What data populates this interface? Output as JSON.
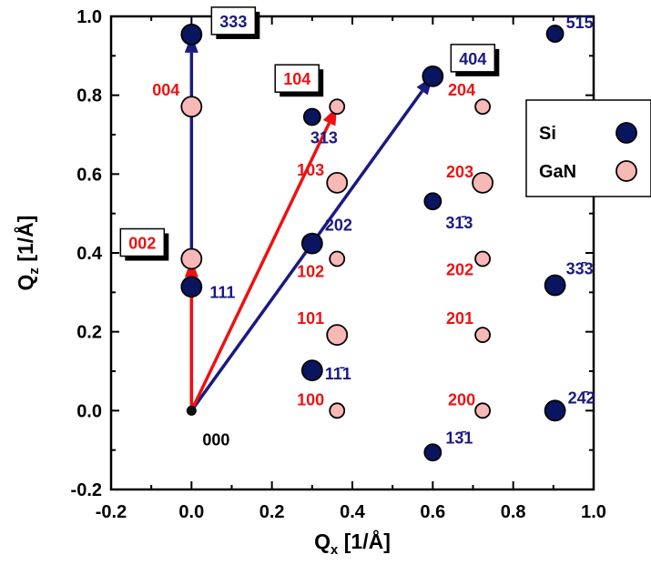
{
  "chart_data": {
    "type": "scatter",
    "title": "",
    "xlabel": {
      "main": "Q",
      "sub": "x",
      "unit": " [1/Å]"
    },
    "ylabel": {
      "main": "Q",
      "sub": "z",
      "unit": " [1/Å]"
    },
    "xlim": [
      -0.2,
      1.0
    ],
    "ylim": [
      -0.2,
      1.0
    ],
    "xticks": [
      "-0.2",
      "0.0",
      "0.2",
      "0.4",
      "0.6",
      "0.8",
      "1.0"
    ],
    "yticks": [
      "-0.2",
      "0.0",
      "0.2",
      "0.4",
      "0.6",
      "0.8",
      "1.0"
    ],
    "grid": false,
    "legend_position": "right",
    "colors": {
      "si_fill": "#0a1560",
      "gan_fill": "#f8b8b6",
      "si_text": "#1a1a80",
      "gan_text": "#ee1111",
      "origin_text": "#000000",
      "si_arrow": "#1a1a80",
      "gan_arrow": "#ee1111"
    },
    "series": [
      {
        "name": "Si",
        "points": [
          {
            "x": 0.0,
            "y": 0.314,
            "label": "111",
            "big": true
          },
          {
            "x": 0.0,
            "y": 0.954,
            "label": "333",
            "big": true
          },
          {
            "x": 0.3,
            "y": 0.102,
            "label": "11̄1",
            "big": true
          },
          {
            "x": 0.3,
            "y": 0.424,
            "label": "202",
            "big": true
          },
          {
            "x": 0.3,
            "y": 0.745,
            "label": "313",
            "big": false
          },
          {
            "x": 0.6,
            "y": 0.848,
            "label": "404",
            "big": true
          },
          {
            "x": 0.6,
            "y": 0.531,
            "label": "31̄3",
            "big": false
          },
          {
            "x": 0.6,
            "y": -0.106,
            "label": "13̄1",
            "big": false
          },
          {
            "x": 0.904,
            "y": 0.956,
            "label": "51̄5",
            "big": false
          },
          {
            "x": 0.904,
            "y": 0.318,
            "label": "33̄3",
            "big": true
          },
          {
            "x": 0.904,
            "y": 0.0,
            "label": "24̄2",
            "big": true
          }
        ]
      },
      {
        "name": "GaN",
        "points": [
          {
            "x": 0.0,
            "y": 0.385,
            "label": "002",
            "big": true
          },
          {
            "x": 0.0,
            "y": 0.771,
            "label": "004",
            "big": true
          },
          {
            "x": 0.362,
            "y": 0.0,
            "label": "100",
            "big": false
          },
          {
            "x": 0.362,
            "y": 0.192,
            "label": "101",
            "big": true
          },
          {
            "x": 0.362,
            "y": 0.385,
            "label": "102",
            "big": false
          },
          {
            "x": 0.362,
            "y": 0.578,
            "label": "103",
            "big": true
          },
          {
            "x": 0.362,
            "y": 0.771,
            "label": "104",
            "big": false
          },
          {
            "x": 0.724,
            "y": 0.0,
            "label": "200",
            "big": false
          },
          {
            "x": 0.724,
            "y": 0.192,
            "label": "201",
            "big": false
          },
          {
            "x": 0.724,
            "y": 0.385,
            "label": "202",
            "big": false
          },
          {
            "x": 0.724,
            "y": 0.578,
            "label": "203",
            "big": true
          },
          {
            "x": 0.724,
            "y": 0.771,
            "label": "204",
            "big": false
          }
        ]
      }
    ],
    "origin": {
      "x": 0.0,
      "y": 0.0,
      "label": "000"
    },
    "arrows": [
      {
        "series": "Si",
        "to": [
          0.0,
          0.954
        ]
      },
      {
        "series": "Si",
        "to": [
          0.6,
          0.848
        ]
      },
      {
        "series": "GaN",
        "to": [
          0.0,
          0.385
        ]
      },
      {
        "series": "GaN",
        "to": [
          0.362,
          0.771
        ]
      }
    ]
  }
}
